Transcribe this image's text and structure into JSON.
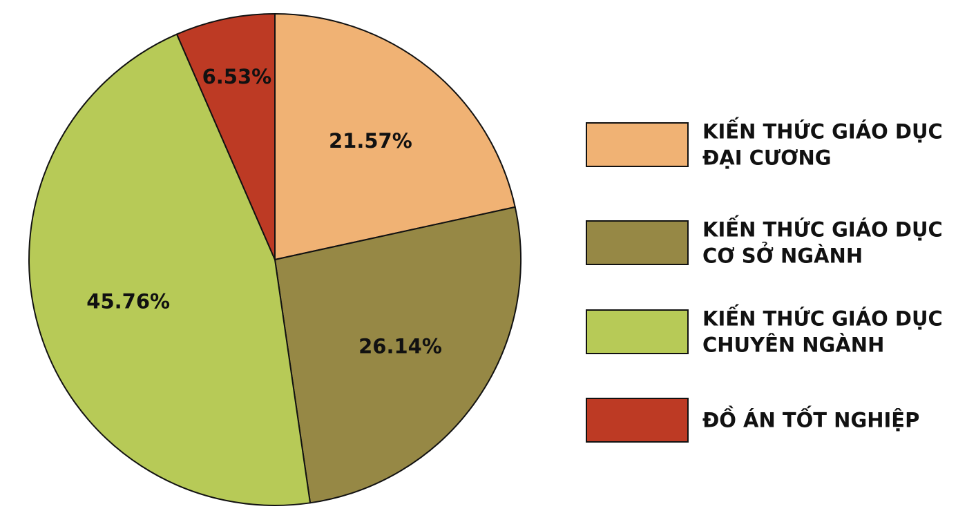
{
  "chart_data": {
    "type": "pie",
    "title": "",
    "categories": [
      "KIẾN THỨC GIÁO DỤC ĐẠI CƯƠNG",
      "KIẾN THỨC GIÁO DỤC CƠ SỞ NGÀNH",
      "KIẾN THỨC GIÁO DỤC CHUYÊN NGÀNH",
      "ĐỒ ÁN TỐT NGHIỆP"
    ],
    "values": [
      21.57,
      26.14,
      45.76,
      6.53
    ],
    "data_labels": [
      "21.57%",
      "26.14%",
      "45.76%",
      "6.53%"
    ],
    "legend_lines": [
      [
        "KIẾN THỨC GIÁO DỤC",
        "ĐẠI CƯƠNG"
      ],
      [
        "KIẾN THỨC GIÁO DỤC",
        "CƠ SỞ NGÀNH"
      ],
      [
        "KIẾN THỨC GIÁO DỤC",
        "CHUYÊN NGÀNH"
      ],
      [
        "ĐỒ ÁN TỐT NGHIỆP"
      ]
    ],
    "colors": [
      "#F0B274",
      "#968845",
      "#B7CA57",
      "#BD3A24"
    ],
    "start_angle_deg": 0,
    "direction": "clockwise",
    "legend_position": "right"
  }
}
